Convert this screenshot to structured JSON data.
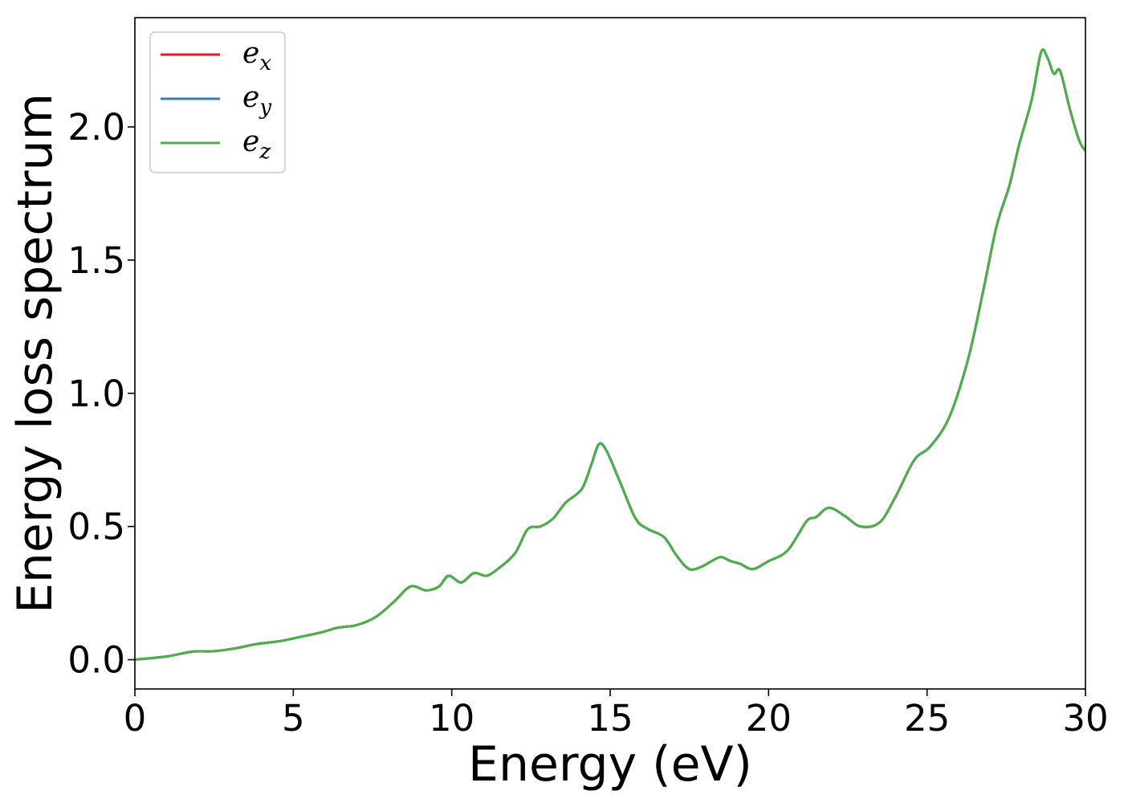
{
  "chart_data": {
    "type": "line",
    "title": "",
    "xlabel": "Energy (eV)",
    "ylabel": "Energy loss spectrum",
    "xlim": [
      0,
      30
    ],
    "ylim": [
      -0.11,
      2.41
    ],
    "xticks": [
      0,
      5,
      10,
      15,
      20,
      25,
      30
    ],
    "xtick_labels": [
      "0",
      "5",
      "10",
      "15",
      "20",
      "25",
      "30"
    ],
    "yticks": [
      0.0,
      0.5,
      1.0,
      1.5,
      2.0
    ],
    "ytick_labels": [
      "0.0",
      "0.5",
      "1.0",
      "1.5",
      "2.0"
    ],
    "grid": false,
    "legend": {
      "placement": "top-left"
    },
    "series": [
      {
        "name": "e",
        "subscript": "x",
        "color": "#e41a1c",
        "values": [
          [
            0,
            0.0
          ],
          [
            1,
            0.012
          ],
          [
            1.8,
            0.03
          ],
          [
            2.5,
            0.032
          ],
          [
            3.2,
            0.043
          ],
          [
            3.8,
            0.058
          ],
          [
            4.6,
            0.07
          ],
          [
            5.2,
            0.085
          ],
          [
            5.9,
            0.103
          ],
          [
            6.4,
            0.12
          ],
          [
            7.0,
            0.13
          ],
          [
            7.6,
            0.16
          ],
          [
            8.2,
            0.22
          ],
          [
            8.7,
            0.275
          ],
          [
            9.2,
            0.26
          ],
          [
            9.6,
            0.275
          ],
          [
            9.9,
            0.315
          ],
          [
            10.3,
            0.29
          ],
          [
            10.7,
            0.325
          ],
          [
            11.1,
            0.315
          ],
          [
            11.5,
            0.345
          ],
          [
            12.0,
            0.4
          ],
          [
            12.4,
            0.49
          ],
          [
            12.8,
            0.5
          ],
          [
            13.2,
            0.53
          ],
          [
            13.6,
            0.59
          ],
          [
            14.1,
            0.64
          ],
          [
            14.4,
            0.73
          ],
          [
            14.65,
            0.81
          ],
          [
            14.9,
            0.78
          ],
          [
            15.3,
            0.67
          ],
          [
            15.8,
            0.53
          ],
          [
            16.2,
            0.49
          ],
          [
            16.7,
            0.46
          ],
          [
            17.1,
            0.39
          ],
          [
            17.5,
            0.34
          ],
          [
            17.9,
            0.35
          ],
          [
            18.2,
            0.37
          ],
          [
            18.5,
            0.385
          ],
          [
            18.8,
            0.37
          ],
          [
            19.1,
            0.36
          ],
          [
            19.5,
            0.34
          ],
          [
            20.0,
            0.37
          ],
          [
            20.6,
            0.41
          ],
          [
            21.2,
            0.52
          ],
          [
            21.5,
            0.535
          ],
          [
            21.9,
            0.57
          ],
          [
            22.4,
            0.54
          ],
          [
            22.9,
            0.5
          ],
          [
            23.5,
            0.515
          ],
          [
            24.0,
            0.61
          ],
          [
            24.6,
            0.75
          ],
          [
            25.1,
            0.8
          ],
          [
            25.7,
            0.91
          ],
          [
            26.3,
            1.13
          ],
          [
            26.8,
            1.4
          ],
          [
            27.2,
            1.63
          ],
          [
            27.6,
            1.78
          ],
          [
            27.9,
            1.93
          ],
          [
            28.3,
            2.1
          ],
          [
            28.6,
            2.28
          ],
          [
            28.8,
            2.26
          ],
          [
            29.0,
            2.2
          ],
          [
            29.2,
            2.21
          ],
          [
            29.5,
            2.07
          ],
          [
            29.8,
            1.95
          ],
          [
            30,
            1.91
          ]
        ]
      },
      {
        "name": "e",
        "subscript": "y",
        "color": "#377eb8",
        "values": [
          [
            0,
            0.0
          ],
          [
            1,
            0.012
          ],
          [
            1.8,
            0.03
          ],
          [
            2.5,
            0.032
          ],
          [
            3.2,
            0.043
          ],
          [
            3.8,
            0.058
          ],
          [
            4.6,
            0.07
          ],
          [
            5.2,
            0.085
          ],
          [
            5.9,
            0.103
          ],
          [
            6.4,
            0.12
          ],
          [
            7.0,
            0.13
          ],
          [
            7.6,
            0.16
          ],
          [
            8.2,
            0.22
          ],
          [
            8.7,
            0.275
          ],
          [
            9.2,
            0.26
          ],
          [
            9.6,
            0.275
          ],
          [
            9.9,
            0.315
          ],
          [
            10.3,
            0.29
          ],
          [
            10.7,
            0.325
          ],
          [
            11.1,
            0.315
          ],
          [
            11.5,
            0.345
          ],
          [
            12.0,
            0.4
          ],
          [
            12.4,
            0.49
          ],
          [
            12.8,
            0.5
          ],
          [
            13.2,
            0.53
          ],
          [
            13.6,
            0.59
          ],
          [
            14.1,
            0.64
          ],
          [
            14.4,
            0.73
          ],
          [
            14.65,
            0.81
          ],
          [
            14.9,
            0.78
          ],
          [
            15.3,
            0.67
          ],
          [
            15.8,
            0.53
          ],
          [
            16.2,
            0.49
          ],
          [
            16.7,
            0.46
          ],
          [
            17.1,
            0.39
          ],
          [
            17.5,
            0.34
          ],
          [
            17.9,
            0.35
          ],
          [
            18.2,
            0.37
          ],
          [
            18.5,
            0.385
          ],
          [
            18.8,
            0.37
          ],
          [
            19.1,
            0.36
          ],
          [
            19.5,
            0.34
          ],
          [
            20.0,
            0.37
          ],
          [
            20.6,
            0.41
          ],
          [
            21.2,
            0.52
          ],
          [
            21.5,
            0.535
          ],
          [
            21.9,
            0.57
          ],
          [
            22.4,
            0.54
          ],
          [
            22.9,
            0.5
          ],
          [
            23.5,
            0.515
          ],
          [
            24.0,
            0.61
          ],
          [
            24.6,
            0.75
          ],
          [
            25.1,
            0.8
          ],
          [
            25.7,
            0.91
          ],
          [
            26.3,
            1.13
          ],
          [
            26.8,
            1.4
          ],
          [
            27.2,
            1.63
          ],
          [
            27.6,
            1.78
          ],
          [
            27.9,
            1.93
          ],
          [
            28.3,
            2.1
          ],
          [
            28.6,
            2.28
          ],
          [
            28.8,
            2.26
          ],
          [
            29.0,
            2.2
          ],
          [
            29.2,
            2.21
          ],
          [
            29.5,
            2.07
          ],
          [
            29.8,
            1.95
          ],
          [
            30,
            1.91
          ]
        ]
      },
      {
        "name": "e",
        "subscript": "z",
        "color": "#4daf4a",
        "values": [
          [
            0,
            0.0
          ],
          [
            1,
            0.012
          ],
          [
            1.8,
            0.03
          ],
          [
            2.5,
            0.032
          ],
          [
            3.2,
            0.043
          ],
          [
            3.8,
            0.058
          ],
          [
            4.6,
            0.07
          ],
          [
            5.2,
            0.085
          ],
          [
            5.9,
            0.103
          ],
          [
            6.4,
            0.12
          ],
          [
            7.0,
            0.13
          ],
          [
            7.6,
            0.16
          ],
          [
            8.2,
            0.22
          ],
          [
            8.7,
            0.275
          ],
          [
            9.2,
            0.26
          ],
          [
            9.6,
            0.275
          ],
          [
            9.9,
            0.315
          ],
          [
            10.3,
            0.29
          ],
          [
            10.7,
            0.325
          ],
          [
            11.1,
            0.315
          ],
          [
            11.5,
            0.345
          ],
          [
            12.0,
            0.4
          ],
          [
            12.4,
            0.49
          ],
          [
            12.8,
            0.5
          ],
          [
            13.2,
            0.53
          ],
          [
            13.6,
            0.59
          ],
          [
            14.1,
            0.64
          ],
          [
            14.4,
            0.73
          ],
          [
            14.65,
            0.81
          ],
          [
            14.9,
            0.78
          ],
          [
            15.3,
            0.67
          ],
          [
            15.8,
            0.53
          ],
          [
            16.2,
            0.49
          ],
          [
            16.7,
            0.46
          ],
          [
            17.1,
            0.39
          ],
          [
            17.5,
            0.34
          ],
          [
            17.9,
            0.35
          ],
          [
            18.2,
            0.37
          ],
          [
            18.5,
            0.385
          ],
          [
            18.8,
            0.37
          ],
          [
            19.1,
            0.36
          ],
          [
            19.5,
            0.34
          ],
          [
            20.0,
            0.37
          ],
          [
            20.6,
            0.41
          ],
          [
            21.2,
            0.52
          ],
          [
            21.5,
            0.535
          ],
          [
            21.9,
            0.57
          ],
          [
            22.4,
            0.54
          ],
          [
            22.9,
            0.5
          ],
          [
            23.5,
            0.515
          ],
          [
            24.0,
            0.61
          ],
          [
            24.6,
            0.75
          ],
          [
            25.1,
            0.8
          ],
          [
            25.7,
            0.91
          ],
          [
            26.3,
            1.13
          ],
          [
            26.8,
            1.4
          ],
          [
            27.2,
            1.63
          ],
          [
            27.6,
            1.78
          ],
          [
            27.9,
            1.93
          ],
          [
            28.3,
            2.1
          ],
          [
            28.6,
            2.28
          ],
          [
            28.8,
            2.26
          ],
          [
            29.0,
            2.2
          ],
          [
            29.2,
            2.21
          ],
          [
            29.5,
            2.07
          ],
          [
            29.8,
            1.95
          ],
          [
            30,
            1.91
          ]
        ]
      }
    ]
  }
}
